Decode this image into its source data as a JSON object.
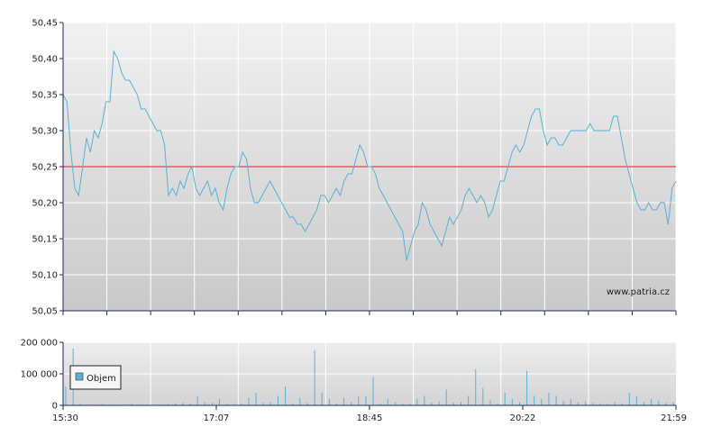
{
  "chart_data": [
    {
      "type": "line",
      "y_ticks": [
        "50,05",
        "50,10",
        "50,15",
        "50,20",
        "50,25",
        "50,30",
        "50,35",
        "50,40",
        "50,45"
      ],
      "ylim": [
        50.05,
        50.45
      ],
      "reference_line": 50.25,
      "reference_color": "#d22222",
      "line_color": "#5ab0d6",
      "watermark": "www.patria.cz",
      "grid": true,
      "x_labels": [
        "15:30",
        "17:07",
        "18:45",
        "20:22",
        "21:59"
      ],
      "series": [
        {
          "values": [
            50.35,
            50.34,
            50.27,
            50.22,
            50.21,
            50.25,
            50.29,
            50.27,
            50.3,
            50.29,
            50.31,
            50.34,
            50.34,
            50.41,
            50.4,
            50.38,
            50.37,
            50.37,
            50.36,
            50.35,
            50.33,
            50.33,
            50.32,
            50.31,
            50.3,
            50.3,
            50.28,
            50.21,
            50.22,
            50.21,
            50.23,
            50.22,
            50.24,
            50.25,
            50.22,
            50.21,
            50.22,
            50.23,
            50.21,
            50.22,
            50.2,
            50.19,
            50.22,
            50.24,
            50.25,
            50.25,
            50.27,
            50.26,
            50.22,
            50.2,
            50.2,
            50.21,
            50.22,
            50.23,
            50.22,
            50.21,
            50.2,
            50.19,
            50.18,
            50.18,
            50.17,
            50.17,
            50.16,
            50.17,
            50.18,
            50.19,
            50.21,
            50.21,
            50.2,
            50.21,
            50.22,
            50.21,
            50.23,
            50.24,
            50.24,
            50.26,
            50.28,
            50.27,
            50.25,
            50.25,
            50.24,
            50.22,
            50.21,
            50.2,
            50.19,
            50.18,
            50.17,
            50.16,
            50.12,
            50.14,
            50.16,
            50.17,
            50.2,
            50.19,
            50.17,
            50.16,
            50.15,
            50.14,
            50.16,
            50.18,
            50.17,
            50.18,
            50.19,
            50.21,
            50.22,
            50.21,
            50.2,
            50.21,
            50.2,
            50.18,
            50.19,
            50.21,
            50.23,
            50.23,
            50.25,
            50.27,
            50.28,
            50.27,
            50.28,
            50.3,
            50.32,
            50.33,
            50.33,
            50.3,
            50.28,
            50.29,
            50.29,
            50.28,
            50.28,
            50.29,
            50.3,
            50.3,
            50.3,
            50.3,
            50.3,
            50.31,
            50.3,
            50.3,
            50.3,
            50.3,
            50.3,
            50.32,
            50.32,
            50.29,
            50.26,
            50.24,
            50.22,
            50.2,
            50.19,
            50.19,
            50.2,
            50.19,
            50.19,
            50.2,
            50.2,
            50.17,
            50.22,
            50.23
          ]
        },
        {
          "name": "Objem",
          "values": [
            60000,
            180000,
            5000,
            3000,
            2000,
            4000,
            1000,
            2000,
            3000,
            5000,
            2000,
            1000,
            3000,
            2000,
            4000,
            6000,
            8000,
            5000,
            30000,
            10000,
            8000,
            20000,
            5000,
            3000,
            5000,
            25000,
            40000,
            8000,
            10000,
            30000,
            60000,
            5000,
            25000,
            8000,
            175000,
            40000,
            20000,
            5000,
            25000,
            10000,
            30000,
            30000,
            90000,
            5000,
            20000,
            10000,
            5000,
            5000,
            20000,
            30000,
            8000,
            12000,
            50000,
            8000,
            10000,
            30000,
            115000,
            55000,
            15000,
            5000,
            40000,
            20000,
            10000,
            110000,
            30000,
            20000,
            40000,
            30000,
            15000,
            20000,
            10000,
            12000,
            8000,
            6000,
            5000,
            10000,
            6000,
            40000,
            30000,
            10000,
            20000,
            15000,
            8000,
            10000
          ]
        }
      ],
      "legend": [
        "Objem"
      ],
      "vol_ticks": [
        "200 000",
        "100 000",
        "0"
      ],
      "vol_ylim": [
        0,
        200000
      ]
    }
  ]
}
